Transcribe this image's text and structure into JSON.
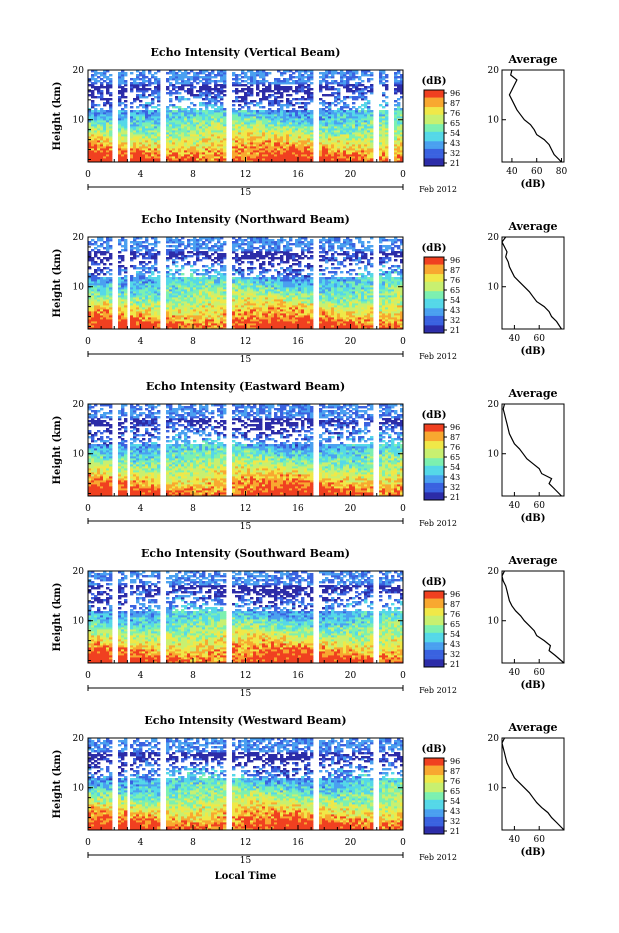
{
  "figure": {
    "date_label": "Feb 2012",
    "xlabel": "Local Time",
    "colorbar_unit": "(dB)",
    "average_title": "Average",
    "average_xlabel": "(dB)",
    "colors": {
      "colormap": [
        "#2c2ca8",
        "#3a62e0",
        "#4aa0f0",
        "#55d8e8",
        "#7cf0b0",
        "#c8f070",
        "#f0e848",
        "#f8a830",
        "#f04020"
      ],
      "missing": "#ffffff",
      "line": "#000000"
    }
  },
  "chart_data": [
    {
      "type": "heatmap",
      "title": "Echo Intensity (Vertical Beam)",
      "ylabel": "Height (km)",
      "xlim": [
        0,
        24
      ],
      "ylim": [
        1.5,
        20
      ],
      "xticks": [
        "0",
        "4",
        "8",
        "12",
        "16",
        "20",
        "0"
      ],
      "day_label": "15",
      "yticks": [
        "20",
        "10"
      ],
      "colorbar_ticks": [
        96,
        87,
        76,
        65,
        54,
        43,
        32,
        21
      ],
      "data_gaps_hours": [
        [
          1.8,
          2.3
        ],
        [
          2.9,
          3.3
        ],
        [
          5.6,
          6.0
        ],
        [
          10.5,
          11.0
        ],
        [
          17.2,
          17.7
        ],
        [
          21.8,
          22.2
        ],
        [
          22.8,
          23.3
        ]
      ],
      "average_profile": {
        "xticks": [
          40,
          60,
          80
        ],
        "xlim": [
          32,
          82
        ],
        "height_km": [
          1.5,
          3,
          4,
          5,
          6,
          7,
          8,
          9,
          10,
          11,
          12,
          13,
          14,
          15,
          16,
          17,
          18,
          19,
          20
        ],
        "db": [
          80,
          74,
          72,
          70,
          66,
          60,
          58,
          55,
          50,
          47,
          44,
          42,
          40,
          38,
          40,
          42,
          44,
          39,
          40
        ]
      }
    },
    {
      "type": "heatmap",
      "title": "Echo Intensity (Northward Beam)",
      "ylabel": "Height (km)",
      "xlim": [
        0,
        24
      ],
      "ylim": [
        1.5,
        20
      ],
      "xticks": [
        "0",
        "4",
        "8",
        "12",
        "16",
        "20",
        "0"
      ],
      "day_label": "15",
      "yticks": [
        "20",
        "10"
      ],
      "colorbar_ticks": [
        96,
        87,
        76,
        65,
        54,
        43,
        32,
        21
      ],
      "data_gaps_hours": [
        [
          1.8,
          2.3
        ],
        [
          2.9,
          3.3
        ],
        [
          5.6,
          6.0
        ],
        [
          10.5,
          11.0
        ],
        [
          17.2,
          17.7
        ],
        [
          21.8,
          22.2
        ]
      ],
      "average_profile": {
        "xticks": [
          40,
          60
        ],
        "xlim": [
          30,
          80
        ],
        "height_km": [
          1.5,
          3,
          4,
          5,
          6,
          7,
          8,
          9,
          10,
          11,
          12,
          13,
          14,
          15,
          16,
          17,
          18,
          19,
          20
        ],
        "db": [
          78,
          74,
          70,
          68,
          64,
          58,
          55,
          52,
          48,
          44,
          40,
          38,
          36,
          35,
          33,
          34,
          32,
          30,
          33
        ]
      }
    },
    {
      "type": "heatmap",
      "title": "Echo Intensity (Eastward Beam)",
      "ylabel": "Height (km)",
      "xlim": [
        0,
        24
      ],
      "ylim": [
        1.5,
        20
      ],
      "xticks": [
        "0",
        "4",
        "8",
        "12",
        "16",
        "20",
        "0"
      ],
      "day_label": "15",
      "yticks": [
        "20",
        "10"
      ],
      "colorbar_ticks": [
        96,
        87,
        76,
        65,
        54,
        43,
        32,
        21
      ],
      "data_gaps_hours": [
        [
          1.8,
          2.3
        ],
        [
          2.9,
          3.3
        ],
        [
          5.6,
          6.0
        ],
        [
          10.5,
          11.0
        ],
        [
          17.2,
          17.7
        ],
        [
          21.8,
          22.2
        ]
      ],
      "average_profile": {
        "xticks": [
          40,
          60
        ],
        "xlim": [
          30,
          80
        ],
        "height_km": [
          1.5,
          3,
          4,
          5,
          6,
          7,
          8,
          9,
          10,
          11,
          12,
          13,
          14,
          15,
          16,
          17,
          18,
          19,
          20
        ],
        "db": [
          78,
          72,
          68,
          70,
          62,
          60,
          55,
          50,
          47,
          44,
          40,
          38,
          36,
          35,
          34,
          33,
          32,
          31,
          32
        ]
      }
    },
    {
      "type": "heatmap",
      "title": "Echo Intensity (Southward Beam)",
      "ylabel": "Height (km)",
      "xlim": [
        0,
        24
      ],
      "ylim": [
        1.5,
        20
      ],
      "xticks": [
        "0",
        "4",
        "8",
        "12",
        "16",
        "20",
        "0"
      ],
      "day_label": "15",
      "yticks": [
        "20",
        "10"
      ],
      "colorbar_ticks": [
        96,
        87,
        76,
        65,
        54,
        43,
        32,
        21
      ],
      "data_gaps_hours": [
        [
          1.8,
          2.3
        ],
        [
          2.9,
          3.3
        ],
        [
          5.6,
          6.0
        ],
        [
          10.5,
          11.0
        ],
        [
          17.2,
          17.7
        ],
        [
          21.8,
          22.2
        ]
      ],
      "average_profile": {
        "xticks": [
          40,
          60
        ],
        "xlim": [
          30,
          80
        ],
        "height_km": [
          1.5,
          3,
          4,
          5,
          6,
          7,
          8,
          9,
          10,
          11,
          12,
          13,
          14,
          15,
          16,
          17,
          18,
          19,
          20
        ],
        "db": [
          80,
          73,
          68,
          69,
          64,
          58,
          56,
          52,
          48,
          45,
          41,
          38,
          36,
          35,
          34,
          33,
          31,
          30,
          32
        ]
      }
    },
    {
      "type": "heatmap",
      "title": "Echo Intensity (Westward Beam)",
      "ylabel": "Height (km)",
      "xlim": [
        0,
        24
      ],
      "ylim": [
        1.5,
        20
      ],
      "xticks": [
        "0",
        "4",
        "8",
        "12",
        "16",
        "20",
        "0"
      ],
      "day_label": "15",
      "yticks": [
        "20",
        "10"
      ],
      "colorbar_ticks": [
        96,
        87,
        76,
        65,
        54,
        43,
        32,
        21
      ],
      "data_gaps_hours": [
        [
          1.8,
          2.3
        ],
        [
          2.9,
          3.3
        ],
        [
          5.6,
          6.0
        ],
        [
          10.5,
          11.0
        ],
        [
          17.2,
          17.7
        ],
        [
          21.8,
          22.2
        ]
      ],
      "average_profile": {
        "xticks": [
          40,
          60
        ],
        "xlim": [
          30,
          80
        ],
        "height_km": [
          1.5,
          3,
          4,
          5,
          6,
          7,
          8,
          9,
          10,
          11,
          12,
          13,
          14,
          15,
          16,
          17,
          18,
          19,
          20
        ],
        "db": [
          80,
          74,
          70,
          67,
          62,
          58,
          55,
          52,
          48,
          44,
          40,
          38,
          36,
          34,
          33,
          32,
          31,
          30,
          32
        ]
      }
    }
  ]
}
